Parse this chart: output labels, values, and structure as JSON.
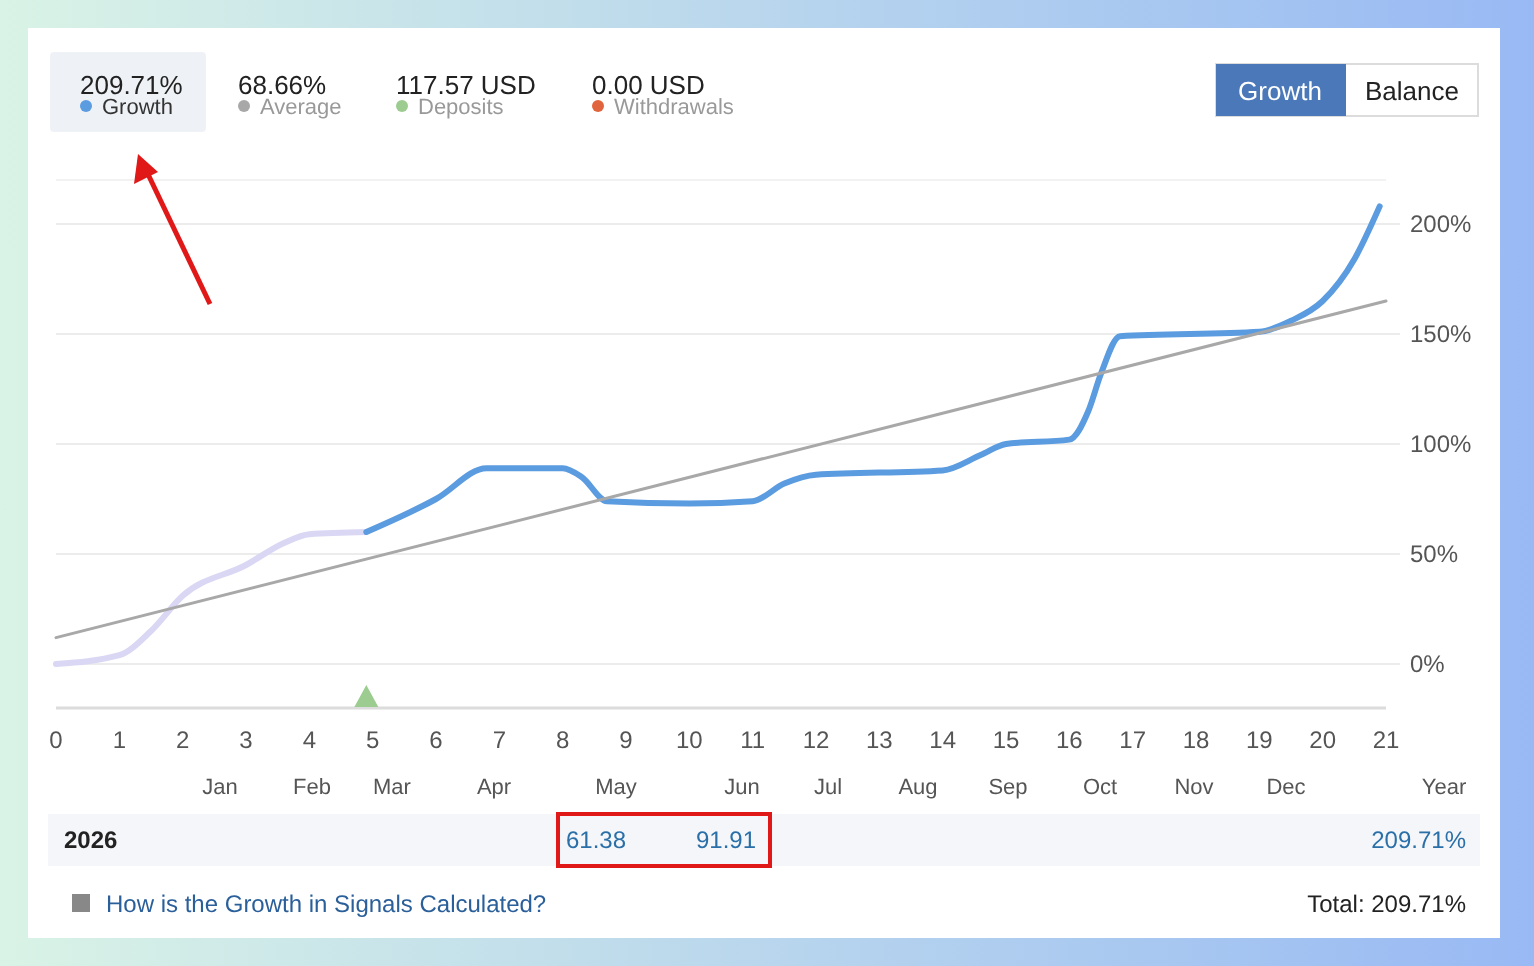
{
  "chart_data": {
    "type": "line",
    "legend": "top left",
    "grid": "y",
    "line_style": "solid",
    "xlim": [
      0,
      21
    ],
    "xticks": [
      0,
      1,
      2,
      3,
      4,
      5,
      6,
      7,
      8,
      9,
      10,
      11,
      12,
      13,
      14,
      15,
      16,
      17,
      18,
      19,
      20,
      21
    ],
    "ylim": [
      -20,
      220
    ],
    "yticks": [
      {
        "value": 0,
        "label": "0%"
      },
      {
        "value": 50,
        "label": "50%"
      },
      {
        "value": 100,
        "label": "100%"
      },
      {
        "value": 150,
        "label": "150%"
      },
      {
        "value": 200,
        "label": "200%"
      }
    ],
    "series": [
      {
        "color": "#d9d7f3",
        "x": [
          0,
          1,
          1.5,
          2,
          3,
          3.6,
          4,
          4.9
        ],
        "values": [
          0,
          4,
          15,
          31,
          45,
          55,
          59,
          60
        ]
      },
      {
        "name": "Growth",
        "color": "#5b9be0",
        "x": [
          4.9,
          6,
          6.8,
          8,
          8.3,
          8.7,
          10,
          11,
          11.5,
          12,
          14,
          14.6,
          15,
          16,
          16.3,
          16.5,
          16.8,
          19,
          19.5,
          20,
          20.5,
          20.9
        ],
        "values": [
          60,
          75,
          89,
          89,
          85,
          74,
          73,
          74,
          82,
          86,
          88,
          95,
          100,
          102,
          115,
          132,
          149,
          151,
          156,
          165,
          184,
          208
        ]
      },
      {
        "name": "Average",
        "color": "#a8a8a8",
        "x": [
          0,
          21
        ],
        "values": [
          12,
          165
        ]
      },
      {
        "name": "Deposits",
        "type": "scatter",
        "marker": "triangle",
        "color": "#9ccc8f",
        "x": [
          4.9
        ],
        "values": [
          -15
        ]
      },
      {
        "name": "Withdrawals",
        "color": "#e0653f"
      }
    ],
    "annotations": [
      "209.71%",
      "68.66%",
      "117.57 USD",
      "0.00 USD",
      "Growth",
      "Balance",
      "Year",
      "2026",
      "61.38",
      "91.91",
      "209.71%",
      "How is the Growth in Signals Calculated?",
      "Total: 209.71%",
      "Jan",
      "Feb",
      "Mar",
      "Apr",
      "May",
      "Jun",
      "Jul",
      "Aug",
      "Sep",
      "Oct",
      "Nov",
      "Dec"
    ]
  }
}
